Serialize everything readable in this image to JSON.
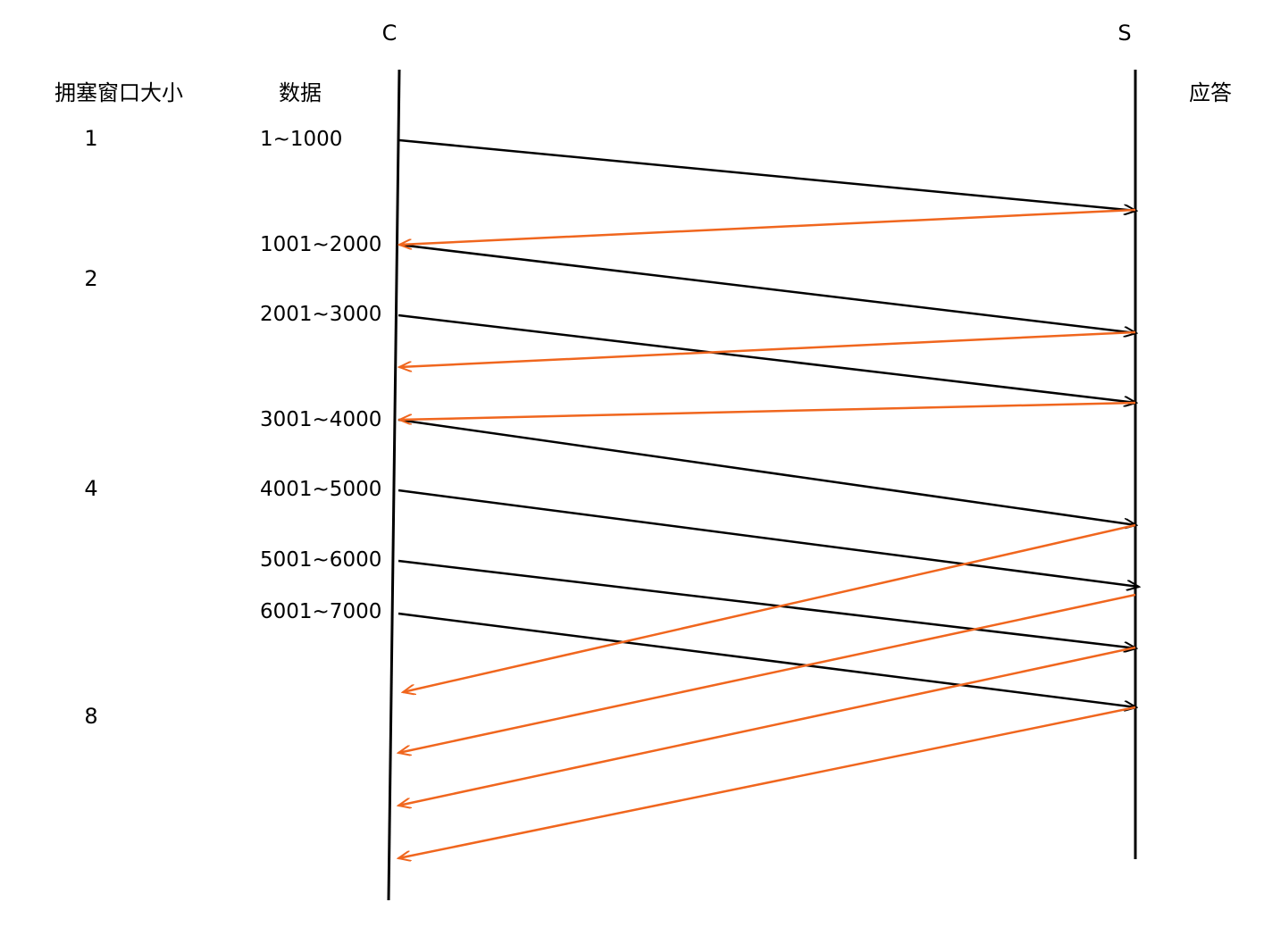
{
  "endpoints": {
    "client": "C",
    "server": "S"
  },
  "headers": {
    "window_size": "拥塞窗口大小",
    "data": "数据",
    "ack": "应答"
  },
  "window_sizes": [
    "1",
    "2",
    "4",
    "8"
  ],
  "segments": [
    "1~1000",
    "1001~2000",
    "2001~3000",
    "3001~4000",
    "4001~5000",
    "5001~6000",
    "6001~7000"
  ],
  "colors": {
    "data_arrow": "#000000",
    "ack_arrow": "#f0661e",
    "timeline": "#000000"
  }
}
